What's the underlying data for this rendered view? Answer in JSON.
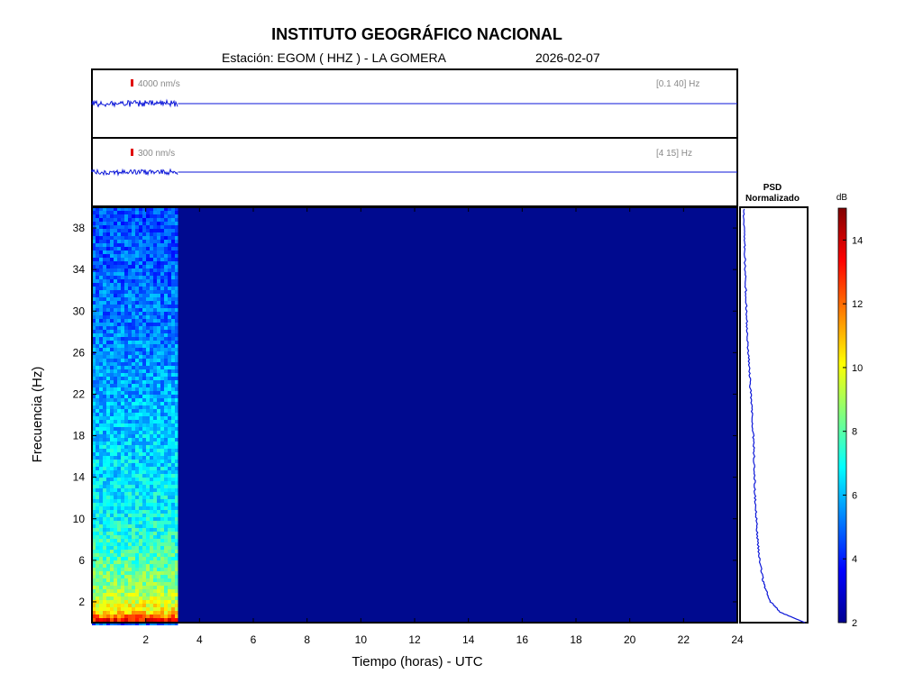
{
  "header": {
    "title": "INSTITUTO GEOGRÁFICO NACIONAL",
    "station": "Estación:  EGOM ( HHZ ) - LA GOMERA",
    "date": "2026-02-07"
  },
  "traces": [
    {
      "scale_label": "4000 nm/s",
      "band_label": "[0.1 40] Hz",
      "data_end_hour": 3.2
    },
    {
      "scale_label": "300 nm/s",
      "band_label": "[4 15] Hz",
      "data_end_hour": 3.2
    }
  ],
  "colors": {
    "trace": "#0b16d8",
    "scale_bar": "#e00000",
    "background_fill": "#000a8f"
  },
  "chart_data": {
    "type": "heatmap",
    "xlabel": "Tiempo (horas) - UTC",
    "ylabel": "Frecuencia  (Hz)",
    "xlim": [
      0,
      24
    ],
    "ylim": [
      0,
      40
    ],
    "xticks": [
      2,
      4,
      6,
      8,
      10,
      12,
      14,
      16,
      18,
      20,
      22,
      24
    ],
    "yticks": [
      2,
      6,
      10,
      14,
      18,
      22,
      26,
      30,
      34,
      38
    ],
    "data_end_hour": 3.2,
    "colorbar": {
      "label": "dB",
      "range": [
        2,
        15
      ],
      "ticks": [
        2,
        4,
        6,
        8,
        10,
        12,
        14
      ],
      "colormap": "jet"
    },
    "psd": {
      "title": "PSD",
      "subtitle": "Normalizado",
      "frequency": [
        0,
        1,
        2,
        3,
        4,
        6,
        8,
        10,
        12,
        14,
        16,
        18,
        20,
        22,
        24,
        26,
        28,
        30,
        32,
        34,
        36,
        38,
        40
      ],
      "value": [
        1.0,
        0.6,
        0.45,
        0.38,
        0.33,
        0.27,
        0.24,
        0.22,
        0.2,
        0.19,
        0.18,
        0.17,
        0.15,
        0.13,
        0.11,
        0.09,
        0.07,
        0.06,
        0.05,
        0.04,
        0.03,
        0.02,
        0.02
      ]
    },
    "spectrogram_profile_db": [
      {
        "f": 0,
        "db": 14
      },
      {
        "f": 1,
        "db": 10.5
      },
      {
        "f": 3,
        "db": 8.8
      },
      {
        "f": 6,
        "db": 7.8
      },
      {
        "f": 10,
        "db": 6.9
      },
      {
        "f": 18,
        "db": 6.2
      },
      {
        "f": 26,
        "db": 5.4
      },
      {
        "f": 34,
        "db": 4.9
      },
      {
        "f": 40,
        "db": 4.6
      }
    ]
  }
}
